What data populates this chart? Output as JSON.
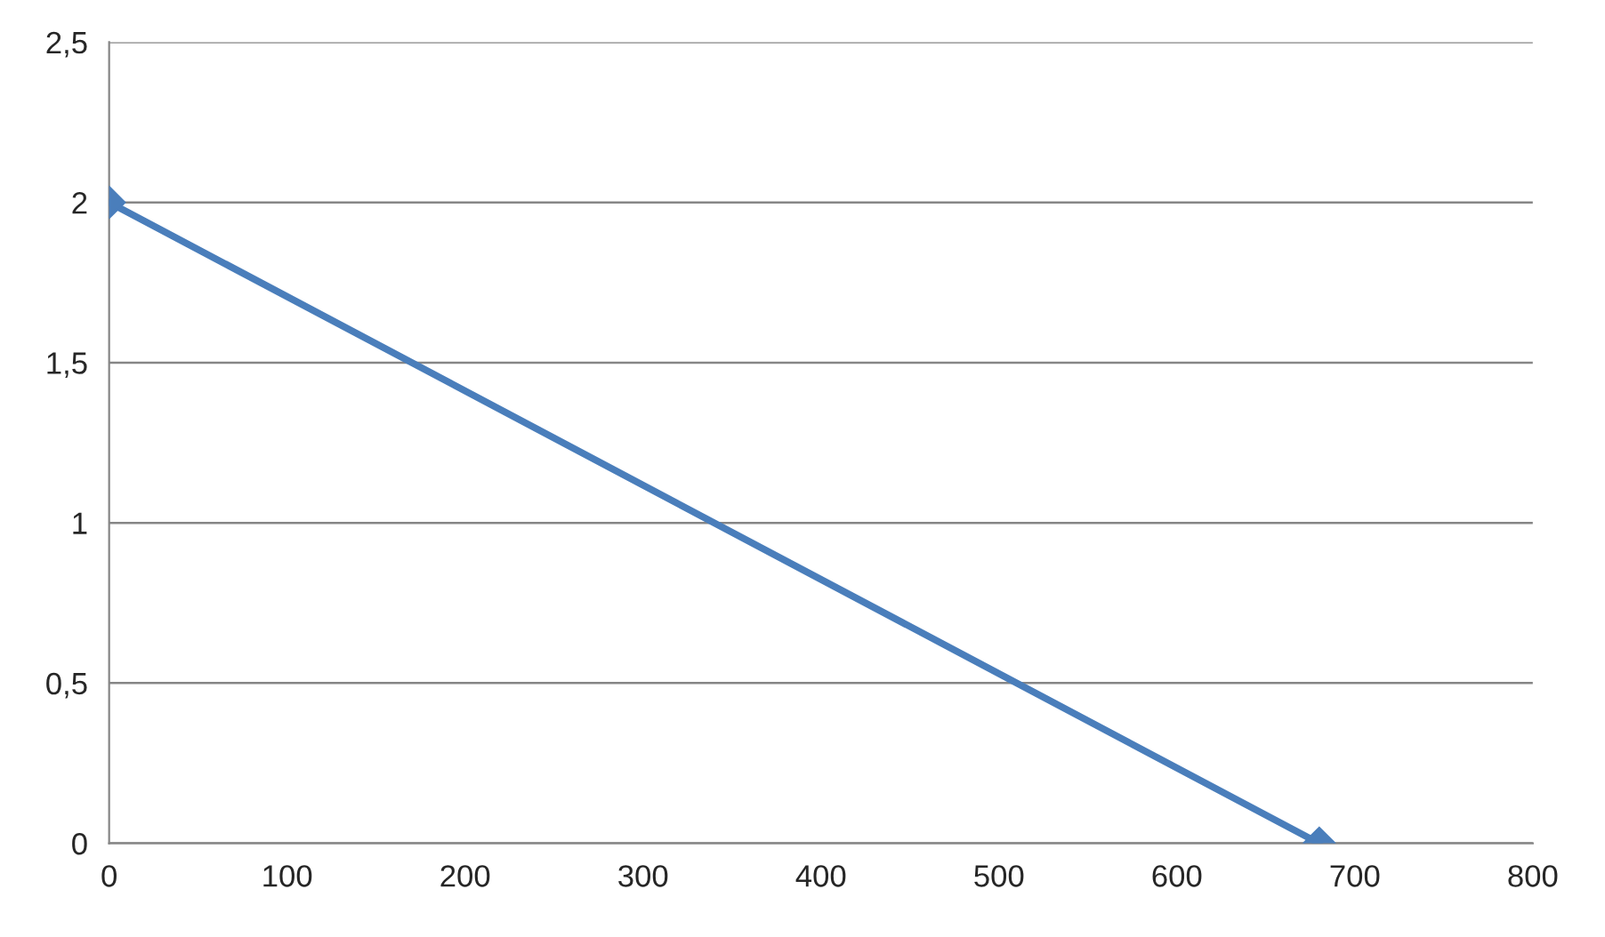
{
  "chart_data": {
    "type": "line",
    "series": [
      {
        "color": "#4a7ebb",
        "x": [
          0,
          680
        ],
        "values": [
          2,
          0
        ]
      }
    ],
    "xlim": [
      0,
      800
    ],
    "xticks": [
      0,
      100,
      200,
      300,
      400,
      500,
      600,
      700,
      800
    ],
    "ylim": [
      0,
      2.5
    ],
    "yticks": [
      0,
      {
        "value": 0.5,
        "label": "0,5"
      },
      1,
      {
        "value": 1.5,
        "label": "1,5"
      },
      2,
      {
        "value": 2.5,
        "label": "2,5"
      }
    ],
    "grid": "y",
    "marker": "diamond",
    "line_style": "solid",
    "legend": false
  }
}
